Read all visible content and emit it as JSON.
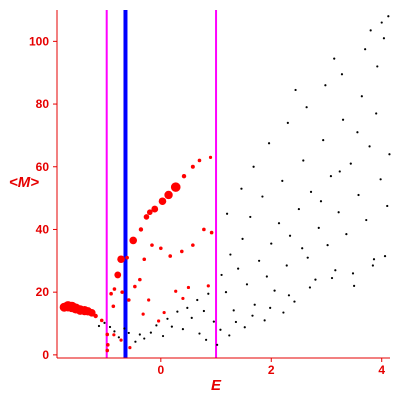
{
  "chart_data": {
    "type": "scatter",
    "title": "",
    "xlabel": "E",
    "ylabel": "<M>",
    "xlim": [
      -1.88,
      4.15
    ],
    "ylim": [
      -1,
      110
    ],
    "grid": false,
    "legend": "none",
    "x_ticks": [
      0,
      2,
      4
    ],
    "y_ticks": [
      0,
      20,
      40,
      60,
      80,
      100
    ],
    "colors": {
      "axis": "#e60000",
      "primary": "#ff0000",
      "secondary": "#000000",
      "line_left": "#ff00ff",
      "line_mid": "#0000ff"
    },
    "vertical_lines": [
      {
        "x": -0.98,
        "color": "#ff00ff",
        "width": 2
      },
      {
        "x": -0.64,
        "color": "#0000ff",
        "width": 4
      },
      {
        "x": 1.0,
        "color": "#ff00ff",
        "width": 2
      }
    ],
    "series": [
      {
        "color": "#ff0000",
        "style": "large-dots",
        "points": [
          [
            -1.75,
            15.2,
            4.5
          ],
          [
            -1.68,
            15.5,
            5.2
          ],
          [
            -1.61,
            15.3,
            5.2
          ],
          [
            -1.54,
            14.8,
            5
          ],
          [
            -1.46,
            14.3,
            4.8
          ],
          [
            -1.38,
            14.1,
            4.6
          ],
          [
            -1.32,
            13.9,
            4.2
          ],
          [
            -1.25,
            13.4,
            3.8
          ],
          [
            -1.18,
            12.4,
            2.2
          ],
          [
            -1.07,
            11.0,
            1.8
          ],
          [
            -0.97,
            6.5,
            1.8
          ],
          [
            -0.96,
            3.2,
            1.8
          ],
          [
            -0.97,
            1.4,
            1.8
          ],
          [
            -0.86,
            15.5,
            1.8
          ],
          [
            -0.78,
            25.5,
            3.4
          ],
          [
            -0.72,
            30.5,
            3.8
          ],
          [
            -0.61,
            31.0,
            1.8
          ],
          [
            -0.5,
            36.5,
            3.8
          ],
          [
            -0.36,
            40.0,
            2.2
          ],
          [
            -0.26,
            44.0,
            2.8
          ],
          [
            -0.2,
            45.5,
            2.8
          ],
          [
            -0.11,
            46.5,
            3.4
          ],
          [
            0.03,
            49.0,
            3.8
          ],
          [
            0.14,
            51.0,
            4.2
          ],
          [
            0.27,
            53.5,
            4.8
          ],
          [
            0.42,
            57.0,
            2.2
          ],
          [
            0.58,
            60.0,
            2.0
          ],
          [
            0.7,
            62.0,
            1.8
          ],
          [
            0.9,
            63.0,
            1.6
          ],
          [
            -0.9,
            19.5,
            1.8
          ],
          [
            -0.84,
            21.0,
            1.8
          ],
          [
            -0.7,
            20.0,
            1.8
          ],
          [
            -0.58,
            17.5,
            1.8
          ],
          [
            -0.47,
            21.8,
            1.8
          ],
          [
            -0.38,
            24.0,
            1.8
          ],
          [
            -0.3,
            30.5,
            1.8
          ],
          [
            -0.16,
            35.0,
            1.8
          ],
          [
            0.0,
            34.0,
            1.8
          ],
          [
            0.17,
            31.5,
            1.8
          ],
          [
            0.38,
            33.0,
            1.8
          ],
          [
            0.58,
            35.0,
            1.8
          ],
          [
            0.78,
            40.0,
            1.8
          ],
          [
            0.92,
            39.0,
            1.8
          ],
          [
            -0.32,
            13.0,
            1.6
          ],
          [
            -0.22,
            17.5,
            1.6
          ],
          [
            -0.04,
            10.8,
            1.6
          ],
          [
            0.06,
            13.5,
            1.6
          ],
          [
            0.27,
            20.3,
            1.6
          ],
          [
            0.4,
            18.0,
            1.6
          ],
          [
            0.5,
            21.5,
            1.6
          ],
          [
            0.86,
            22.0,
            1.6
          ],
          [
            -0.85,
            6.4,
            1.6
          ],
          [
            -0.72,
            4.7,
            1.6
          ],
          [
            -0.56,
            2.3,
            1.6
          ]
        ]
      },
      {
        "color": "#000000",
        "style": "small-dots",
        "points": [
          [
            -1.12,
            9.2
          ],
          [
            -1.02,
            10.2
          ],
          [
            -0.92,
            8.9
          ],
          [
            -0.84,
            7.5
          ],
          [
            -0.76,
            5.6
          ],
          [
            -0.66,
            8.4
          ],
          [
            -0.58,
            7.0
          ],
          [
            -0.46,
            4.2
          ],
          [
            -0.38,
            6.5
          ],
          [
            -0.3,
            5.2
          ],
          [
            -0.18,
            7.1
          ],
          [
            -0.08,
            9.4
          ],
          [
            0.04,
            6.0
          ],
          [
            0.12,
            11.5
          ],
          [
            0.2,
            9.0
          ],
          [
            0.3,
            13.8
          ],
          [
            0.4,
            8.2
          ],
          [
            0.48,
            15.0
          ],
          [
            0.56,
            11.8
          ],
          [
            0.66,
            17.5
          ],
          [
            0.78,
            14.0
          ],
          [
            0.86,
            19.5
          ],
          [
            0.96,
            10.6
          ],
          [
            1.1,
            25.5
          ],
          [
            1.18,
            20.0
          ],
          [
            1.26,
            32.0
          ],
          [
            1.32,
            14.2
          ],
          [
            1.4,
            27.5
          ],
          [
            1.48,
            37.0
          ],
          [
            1.56,
            22.5
          ],
          [
            1.62,
            44.0
          ],
          [
            1.7,
            16.0
          ],
          [
            1.78,
            30.0
          ],
          [
            1.84,
            50.5
          ],
          [
            1.92,
            25.0
          ],
          [
            2.0,
            35.5
          ],
          [
            2.06,
            20.5
          ],
          [
            2.14,
            42.0
          ],
          [
            2.2,
            55.5
          ],
          [
            2.28,
            28.5
          ],
          [
            2.34,
            38.0
          ],
          [
            2.42,
            17.0
          ],
          [
            2.5,
            46.5
          ],
          [
            2.58,
            62.0
          ],
          [
            2.66,
            31.0
          ],
          [
            2.72,
            52.0
          ],
          [
            2.8,
            24.0
          ],
          [
            2.86,
            40.5
          ],
          [
            2.94,
            68.5
          ],
          [
            3.02,
            35.0
          ],
          [
            3.08,
            57.0
          ],
          [
            3.16,
            27.0
          ],
          [
            3.22,
            45.5
          ],
          [
            3.3,
            75.0
          ],
          [
            3.36,
            38.5
          ],
          [
            3.44,
            61.0
          ],
          [
            3.5,
            22.0
          ],
          [
            3.58,
            51.0
          ],
          [
            3.64,
            82.5
          ],
          [
            3.72,
            43.0
          ],
          [
            3.78,
            66.5
          ],
          [
            3.86,
            30.5
          ],
          [
            3.92,
            92.0
          ],
          [
            3.98,
            56.0
          ],
          [
            4.04,
            101.0
          ],
          [
            4.1,
            47.5
          ],
          [
            4.12,
            108.0
          ],
          [
            1.2,
            45.0
          ],
          [
            1.46,
            53.0
          ],
          [
            1.68,
            60.0
          ],
          [
            1.96,
            67.5
          ],
          [
            2.3,
            74.0
          ],
          [
            2.64,
            79.0
          ],
          [
            2.98,
            86.0
          ],
          [
            3.28,
            89.5
          ],
          [
            3.7,
            97.5
          ],
          [
            4.0,
            106.0
          ],
          [
            1.08,
            8.0
          ],
          [
            1.36,
            10.5
          ],
          [
            1.66,
            12.5
          ],
          [
            1.98,
            15.0
          ],
          [
            2.32,
            19.0
          ],
          [
            2.7,
            21.5
          ],
          [
            3.1,
            24.5
          ],
          [
            3.48,
            26.0
          ],
          [
            3.84,
            28.5
          ],
          [
            4.06,
            31.5
          ],
          [
            0.7,
            6.8
          ],
          [
            0.82,
            4.8
          ],
          [
            1.02,
            3.2
          ],
          [
            1.24,
            6.2
          ],
          [
            1.52,
            8.8
          ],
          [
            1.88,
            11.0
          ],
          [
            2.22,
            13.5
          ],
          [
            2.56,
            34.0
          ],
          [
            2.9,
            49.0
          ],
          [
            3.24,
            58.5
          ],
          [
            3.56,
            71.0
          ],
          [
            3.9,
            77.0
          ],
          [
            4.14,
            64.0
          ],
          [
            2.44,
            84.5
          ],
          [
            3.14,
            94.5
          ],
          [
            3.8,
            103.5
          ]
        ]
      }
    ]
  }
}
